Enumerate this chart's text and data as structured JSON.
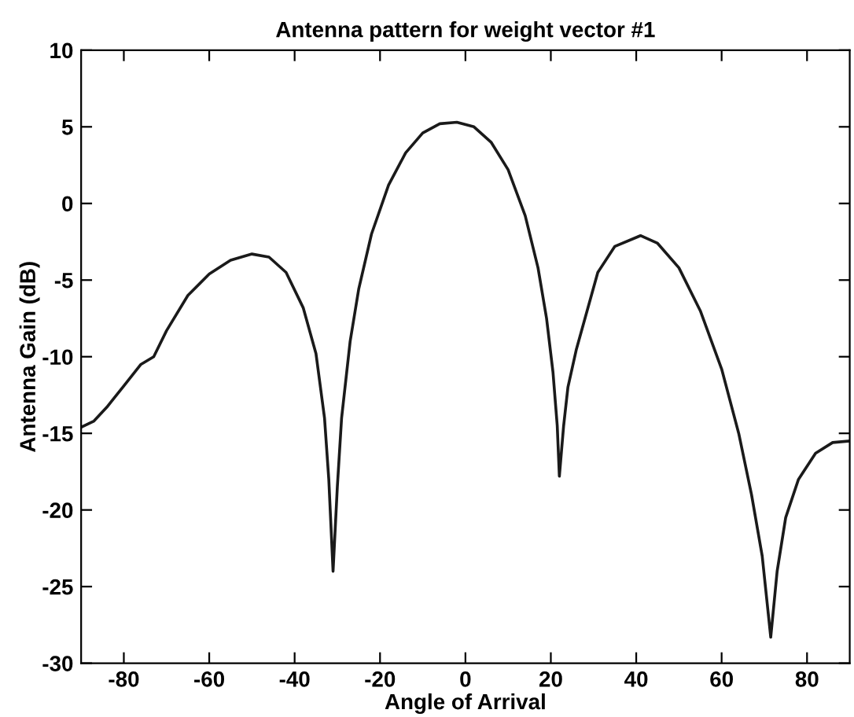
{
  "chart_data": {
    "type": "line",
    "title": "Antenna pattern for weight vector #1",
    "xlabel": "Angle of Arrival",
    "ylabel": "Antenna Gain (dB)",
    "x": [
      -90,
      -87,
      -84,
      -80,
      -76,
      -73,
      -70,
      -65,
      -60,
      -55,
      -50,
      -46,
      -42,
      -38,
      -35,
      -33,
      -32,
      -31,
      -30,
      -29,
      -27,
      -25,
      -22,
      -18,
      -14,
      -10,
      -6,
      -2,
      2,
      6,
      10,
      14,
      17,
      19,
      20.5,
      21.5,
      22,
      23,
      24,
      26,
      28,
      31,
      35,
      41,
      45,
      50,
      55,
      60,
      64,
      67,
      69.5,
      71.5,
      73,
      75,
      78,
      82,
      86,
      90
    ],
    "series": [
      {
        "color": "#1a1a1a",
        "values": [
          -14.6,
          -14.2,
          -13.3,
          -11.9,
          -10.5,
          -10,
          -8.3,
          -6.0,
          -4.6,
          -3.7,
          -3.3,
          -3.5,
          -4.5,
          -6.8,
          -9.8,
          -14,
          -18,
          -24,
          -18.5,
          -14,
          -9,
          -5.6,
          -2.0,
          1.2,
          3.3,
          4.6,
          5.2,
          5.3,
          5.0,
          4.0,
          2.2,
          -0.8,
          -4.2,
          -7.5,
          -11,
          -14.5,
          -17.8,
          -14.5,
          -12,
          -9.5,
          -7.5,
          -4.5,
          -2.8,
          -2.1,
          -2.6,
          -4.2,
          -7.0,
          -10.8,
          -15,
          -19,
          -23,
          -28.3,
          -24,
          -20.5,
          -18,
          -16.3,
          -15.6,
          -15.5
        ]
      }
    ],
    "xlim": [
      -90,
      90
    ],
    "ylim": [
      -30,
      10
    ],
    "xticks": [
      -80,
      -60,
      -40,
      -20,
      0,
      20,
      40,
      60,
      80
    ],
    "yticks": [
      -30,
      -25,
      -20,
      -15,
      -10,
      -5,
      0,
      5,
      10
    ],
    "grid": false,
    "legend": false,
    "marker": "none",
    "line_style": "solid"
  }
}
